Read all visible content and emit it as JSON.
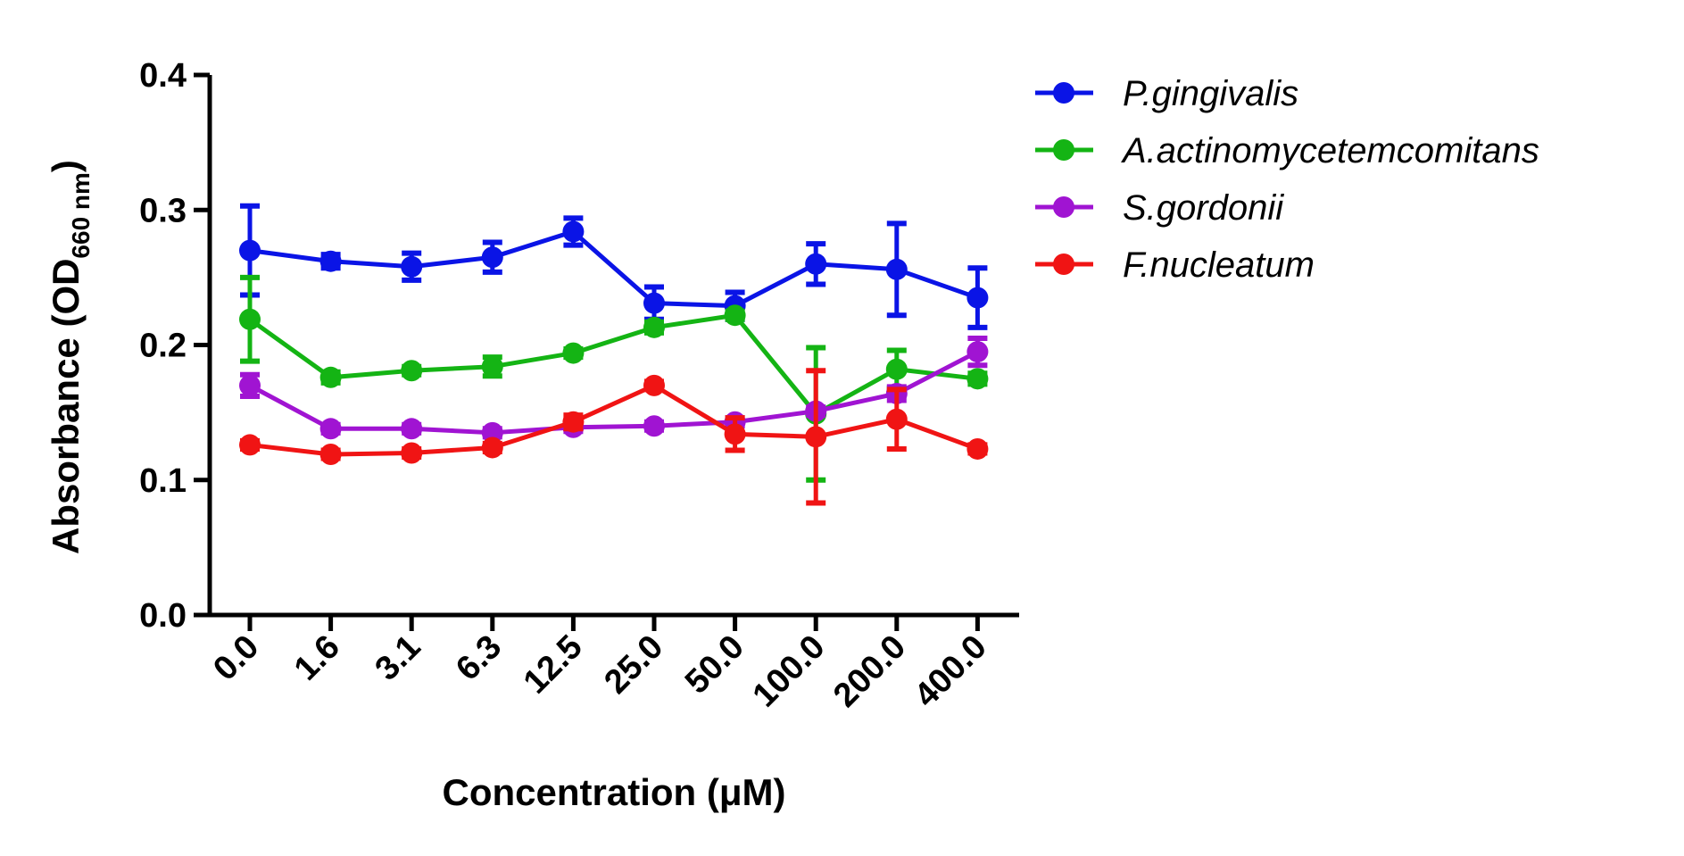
{
  "chart_data": {
    "type": "line",
    "title": "",
    "xlabel": "Concentration (μM)",
    "ylabel": {
      "main": "Absorbance (OD",
      "subscript": "660 nm",
      "close": ")"
    },
    "ylim": [
      0,
      0.4
    ],
    "yticks": [
      "0.0",
      "0.1",
      "0.2",
      "0.3",
      "0.4"
    ],
    "categories": [
      "0.0",
      "1.6",
      "3.1",
      "6.3",
      "12.5",
      "25.0",
      "50.0",
      "100.0",
      "200.0",
      "400.0"
    ],
    "legend_position": "right",
    "series": [
      {
        "name": "P.gingivalis",
        "color": "#0a14e6",
        "values": [
          0.27,
          0.262,
          0.258,
          0.265,
          0.284,
          0.231,
          0.229,
          0.26,
          0.256,
          0.235
        ],
        "errors": [
          0.033,
          0.005,
          0.01,
          0.011,
          0.01,
          0.012,
          0.01,
          0.015,
          0.034,
          0.022
        ]
      },
      {
        "name": "A.actinomycetemcomitans",
        "color": "#14b414",
        "values": [
          0.219,
          0.176,
          0.181,
          0.184,
          0.194,
          0.213,
          0.222,
          0.149,
          0.182,
          0.175
        ],
        "errors": [
          0.031,
          0.004,
          0.003,
          0.007,
          0.003,
          0.004,
          0.003,
          0.049,
          0.014,
          0.004
        ]
      },
      {
        "name": "S.gordonii",
        "color": "#a014d2",
        "values": [
          0.17,
          0.138,
          0.138,
          0.135,
          0.139,
          0.14,
          0.143,
          0.151,
          0.164,
          0.195
        ],
        "errors": [
          0.008,
          0.003,
          0.003,
          0.003,
          0.003,
          0.003,
          0.003,
          0.003,
          0.005,
          0.01
        ]
      },
      {
        "name": "F.nucleatum",
        "color": "#f01414",
        "values": [
          0.126,
          0.119,
          0.12,
          0.124,
          0.143,
          0.17,
          0.134,
          0.132,
          0.145,
          0.123
        ],
        "errors": [
          0.003,
          0.003,
          0.003,
          0.003,
          0.005,
          0.003,
          0.012,
          0.049,
          0.022,
          0.003
        ]
      }
    ]
  }
}
